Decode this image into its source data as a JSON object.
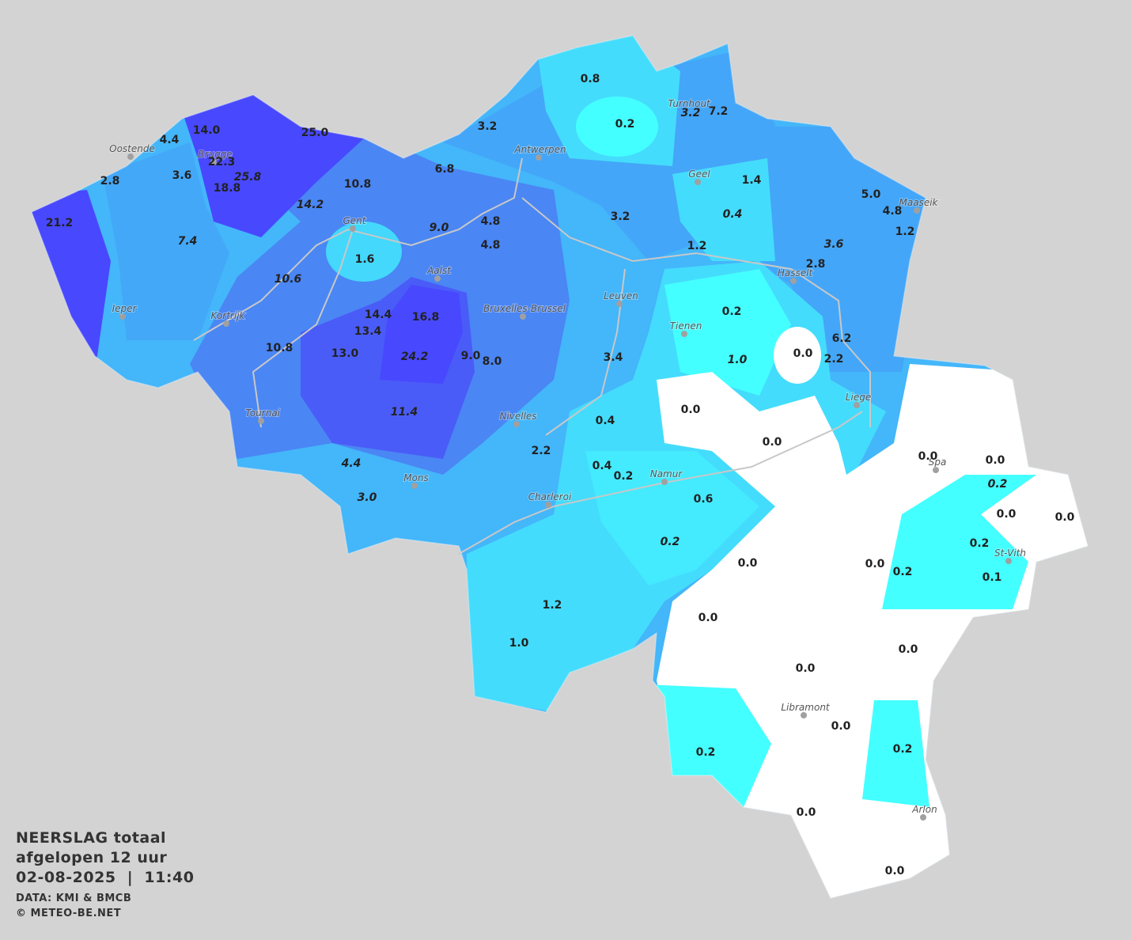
{
  "title": {
    "lines": [
      "NEERSLAG totaal",
      "afgelopen 12 uur",
      "02-08-2025  |  11:40"
    ],
    "source": "DATA: KMI & BMCB",
    "credit": "© METEO-BE.NET"
  },
  "cities": [
    "Oostende",
    "Brugge",
    "Antwerpen",
    "Turnhout",
    "Geel",
    "Maaseik",
    "Gent",
    "Aalst",
    "Hasselt",
    "Leuven",
    "Ieper",
    "Kortrijk",
    "Bruxelles-Brussel",
    "Tienen",
    "Liege",
    "Tournai",
    "Nivelles",
    "Namur",
    "Spa",
    "Mons",
    "Charleroi",
    "St-Vith",
    "Libramont",
    "Arlon"
  ],
  "values": [
    {
      "text": "0.8",
      "italic": false
    },
    {
      "text": "0.2",
      "italic": false
    },
    {
      "text": "3.2",
      "italic": false
    },
    {
      "text": "3.2",
      "italic": true
    },
    {
      "text": "7.2",
      "italic": false
    },
    {
      "text": "14.0",
      "italic": false
    },
    {
      "text": "4.4",
      "italic": false
    },
    {
      "text": "25.0",
      "italic": false
    },
    {
      "text": "22.3",
      "italic": false
    },
    {
      "text": "25.8",
      "italic": true
    },
    {
      "text": "18.8",
      "italic": false
    },
    {
      "text": "2.8",
      "italic": false
    },
    {
      "text": "3.6",
      "italic": false
    },
    {
      "text": "10.8",
      "italic": false
    },
    {
      "text": "6.8",
      "italic": false
    },
    {
      "text": "14.2",
      "italic": true
    },
    {
      "text": "21.2",
      "italic": false
    },
    {
      "text": "7.4",
      "italic": true
    },
    {
      "text": "9.0",
      "italic": true
    },
    {
      "text": "4.8",
      "italic": false
    },
    {
      "text": "4.8",
      "italic": false
    },
    {
      "text": "3.2",
      "italic": false
    },
    {
      "text": "1.4",
      "italic": false
    },
    {
      "text": "0.4",
      "italic": true
    },
    {
      "text": "5.0",
      "italic": false
    },
    {
      "text": "4.8",
      "italic": false
    },
    {
      "text": "1.2",
      "italic": false
    },
    {
      "text": "3.6",
      "italic": true
    },
    {
      "text": "1.2",
      "italic": false
    },
    {
      "text": "2.8",
      "italic": false
    },
    {
      "text": "1.6",
      "italic": false
    },
    {
      "text": "10.6",
      "italic": true
    },
    {
      "text": "14.4",
      "italic": false
    },
    {
      "text": "16.8",
      "italic": false
    },
    {
      "text": "13.4",
      "italic": false
    },
    {
      "text": "10.8",
      "italic": false
    },
    {
      "text": "13.0",
      "italic": false
    },
    {
      "text": "24.2",
      "italic": true
    },
    {
      "text": "9.0",
      "italic": false
    },
    {
      "text": "8.0",
      "italic": false
    },
    {
      "text": "3.4",
      "italic": false
    },
    {
      "text": "0.2",
      "italic": false
    },
    {
      "text": "1.0",
      "italic": true
    },
    {
      "text": "0.0",
      "italic": false
    },
    {
      "text": "6.2",
      "italic": false
    },
    {
      "text": "2.2",
      "italic": false
    },
    {
      "text": "11.4",
      "italic": true
    },
    {
      "text": "0.0",
      "italic": false
    },
    {
      "text": "0.4",
      "italic": false
    },
    {
      "text": "0.0",
      "italic": false
    },
    {
      "text": "2.2",
      "italic": false
    },
    {
      "text": "4.4",
      "italic": true
    },
    {
      "text": "0.4",
      "italic": false
    },
    {
      "text": "0.2",
      "italic": false
    },
    {
      "text": "0.0",
      "italic": false
    },
    {
      "text": "0.0",
      "italic": false
    },
    {
      "text": "0.2",
      "italic": true
    },
    {
      "text": "3.0",
      "italic": true
    },
    {
      "text": "0.6",
      "italic": false
    },
    {
      "text": "0.0",
      "italic": false
    },
    {
      "text": "0.0",
      "italic": false
    },
    {
      "text": "0.2",
      "italic": true
    },
    {
      "text": "0.2",
      "italic": false
    },
    {
      "text": "0.0",
      "italic": false
    },
    {
      "text": "0.0",
      "italic": false
    },
    {
      "text": "0.2",
      "italic": false
    },
    {
      "text": "0.1",
      "italic": false
    },
    {
      "text": "1.2",
      "italic": false
    },
    {
      "text": "0.0",
      "italic": false
    },
    {
      "text": "0.0",
      "italic": false
    },
    {
      "text": "1.0",
      "italic": false
    },
    {
      "text": "0.0",
      "italic": false
    },
    {
      "text": "0.0",
      "italic": false
    },
    {
      "text": "0.2",
      "italic": false
    },
    {
      "text": "0.2",
      "italic": false
    },
    {
      "text": "0.0",
      "italic": false
    },
    {
      "text": "0.0",
      "italic": false
    }
  ]
}
